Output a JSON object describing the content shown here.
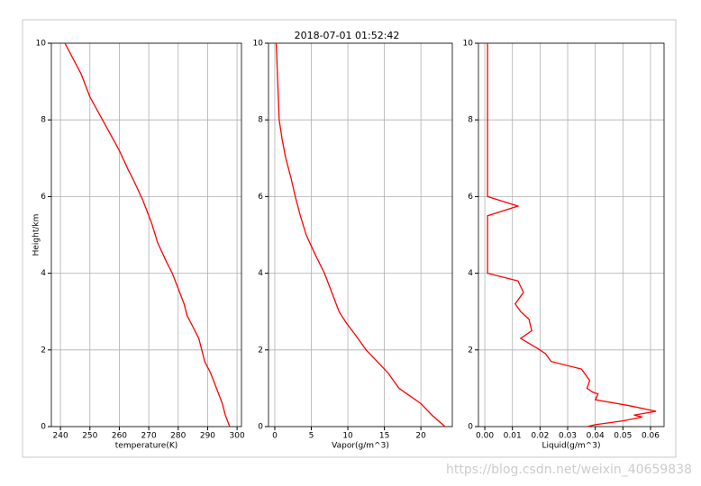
{
  "chart_data": [
    {
      "type": "line",
      "title": "2018-07-01 01:52:42",
      "xlabel": "temperature(K)",
      "ylabel": "Height/km",
      "xlim": [
        236.9,
        301.5
      ],
      "xticks": [
        240,
        250,
        260,
        270,
        280,
        290,
        300
      ],
      "ylim": [
        0,
        10
      ],
      "yticks": [
        0,
        2,
        4,
        6,
        8,
        10
      ],
      "grid": true,
      "color": "#ff0000",
      "x": [
        241.5,
        247,
        250,
        255,
        260,
        263,
        265,
        268,
        271,
        273,
        276,
        278,
        280,
        282,
        283,
        285,
        287,
        288,
        289,
        291,
        293,
        295,
        296,
        297.5
      ],
      "values": [
        10,
        9.2,
        8.6,
        7.9,
        7.2,
        6.7,
        6.4,
        5.9,
        5.3,
        4.8,
        4.3,
        4.0,
        3.6,
        3.2,
        2.9,
        2.6,
        2.3,
        2.0,
        1.7,
        1.4,
        1.0,
        0.6,
        0.3,
        0
      ]
    },
    {
      "type": "line",
      "xlabel": "Vapor(g/m^3)",
      "xlim": [
        -0.86,
        24.3
      ],
      "xticks": [
        0,
        5,
        10,
        15,
        20
      ],
      "ylim": [
        0,
        10
      ],
      "yticks": [
        0,
        2,
        4,
        6,
        8,
        10
      ],
      "grid": true,
      "color": "#ff0000",
      "x": [
        0.2,
        0.4,
        0.6,
        1,
        1.5,
        2.2,
        2.8,
        3.5,
        4.3,
        5.5,
        6.8,
        7.8,
        8.8,
        9.8,
        11,
        12.5,
        14,
        15.5,
        17,
        18.5,
        20,
        21.5,
        23.3
      ],
      "values": [
        10,
        9,
        8,
        7.5,
        7,
        6.5,
        6,
        5.5,
        5,
        4.5,
        4,
        3.5,
        3,
        2.7,
        2.4,
        2,
        1.7,
        1.4,
        1.0,
        0.8,
        0.6,
        0.3,
        0
      ]
    },
    {
      "type": "line",
      "xlabel": "Liquid(g/m^3)",
      "xlim": [
        -0.0023,
        0.0649
      ],
      "xticks": [
        {
          "value": 0,
          "label": "0.00"
        },
        0.01,
        0.02,
        0.03,
        0.04,
        0.05,
        0.06
      ],
      "ylim": [
        0,
        10
      ],
      "yticks": [
        0,
        2,
        4,
        6,
        8,
        10
      ],
      "grid": true,
      "color": "#ff0000",
      "x": [
        0.001,
        0.001,
        0.012,
        0.001,
        0.001,
        0.012,
        0.014,
        0.011,
        0.013,
        0.016,
        0.017,
        0.013,
        0.02,
        0.022,
        0.024,
        0.035,
        0.038,
        0.037,
        0.039,
        0.041,
        0.04,
        0.052,
        0.062,
        0.054,
        0.057,
        0.05,
        0.04,
        0.037
      ],
      "values": [
        10,
        6,
        5.75,
        5.5,
        4,
        3.8,
        3.5,
        3.2,
        3.0,
        2.8,
        2.5,
        2.3,
        2.0,
        1.9,
        1.7,
        1.5,
        1.2,
        1.0,
        0.9,
        0.85,
        0.7,
        0.55,
        0.4,
        0.3,
        0.25,
        0.15,
        0.05,
        0
      ]
    }
  ],
  "watermark": "https://blog.csdn.net/weixin_40659838"
}
